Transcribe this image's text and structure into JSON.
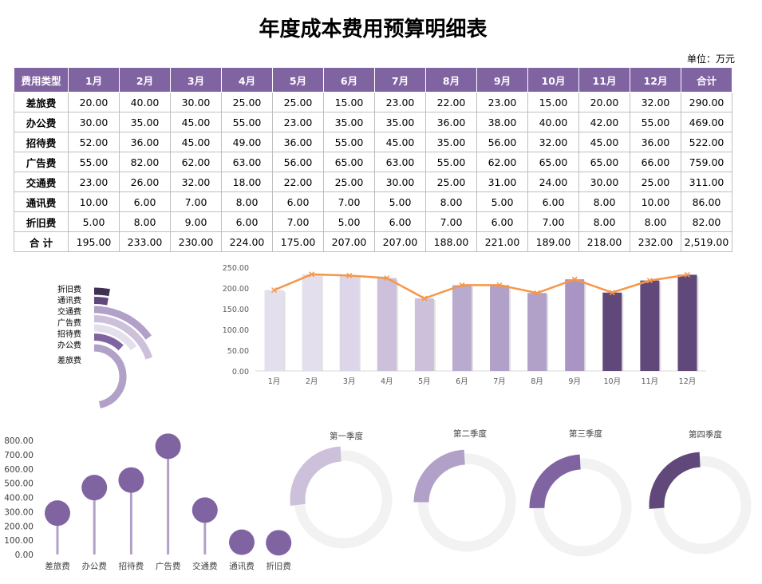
{
  "title": "年度成本费用预算明细表",
  "unit": "单位：万元",
  "table": {
    "headers": [
      "费用类型",
      "1月",
      "2月",
      "3月",
      "4月",
      "5月",
      "6月",
      "7月",
      "8月",
      "9月",
      "10月",
      "11月",
      "12月",
      "合计"
    ],
    "rows": [
      [
        "差旅费",
        "20.00",
        "40.00",
        "30.00",
        "25.00",
        "25.00",
        "15.00",
        "23.00",
        "22.00",
        "23.00",
        "15.00",
        "20.00",
        "32.00",
        "290.00"
      ],
      [
        "办公费",
        "30.00",
        "35.00",
        "45.00",
        "55.00",
        "23.00",
        "35.00",
        "35.00",
        "36.00",
        "38.00",
        "40.00",
        "42.00",
        "55.00",
        "469.00"
      ],
      [
        "招待费",
        "52.00",
        "36.00",
        "45.00",
        "49.00",
        "36.00",
        "55.00",
        "45.00",
        "35.00",
        "56.00",
        "32.00",
        "45.00",
        "36.00",
        "522.00"
      ],
      [
        "广告费",
        "55.00",
        "82.00",
        "62.00",
        "63.00",
        "56.00",
        "65.00",
        "63.00",
        "55.00",
        "62.00",
        "65.00",
        "65.00",
        "66.00",
        "759.00"
      ],
      [
        "交通费",
        "23.00",
        "26.00",
        "32.00",
        "18.00",
        "22.00",
        "25.00",
        "30.00",
        "25.00",
        "31.00",
        "24.00",
        "30.00",
        "25.00",
        "311.00"
      ],
      [
        "通讯费",
        "10.00",
        "6.00",
        "7.00",
        "8.00",
        "6.00",
        "7.00",
        "5.00",
        "8.00",
        "5.00",
        "6.00",
        "8.00",
        "10.00",
        "86.00"
      ],
      [
        "折旧费",
        "5.00",
        "8.00",
        "9.00",
        "6.00",
        "7.00",
        "5.00",
        "6.00",
        "7.00",
        "6.00",
        "7.00",
        "8.00",
        "8.00",
        "82.00"
      ],
      [
        "合 计",
        "195.00",
        "233.00",
        "230.00",
        "224.00",
        "175.00",
        "207.00",
        "207.00",
        "188.00",
        "221.00",
        "189.00",
        "218.00",
        "232.00",
        "2,519.00"
      ]
    ]
  },
  "chart_data": [
    {
      "type": "radial-bar",
      "categories": [
        "折旧费",
        "通讯费",
        "交通费",
        "广告费",
        "招待费",
        "办公费",
        "差旅费"
      ],
      "values": [
        82,
        86,
        311,
        759,
        522,
        469,
        290
      ],
      "colors": [
        "#403152",
        "#60497a",
        "#b1a0c7",
        "#ccc0da",
        "#e4dfec",
        "#8064a2",
        "#b1a0c7"
      ]
    },
    {
      "type": "bar+line",
      "categories": [
        "1月",
        "2月",
        "3月",
        "4月",
        "5月",
        "6月",
        "7月",
        "8月",
        "9月",
        "10月",
        "11月",
        "12月"
      ],
      "values": [
        195,
        233,
        230,
        224,
        175,
        207,
        207,
        188,
        221,
        189,
        218,
        232
      ],
      "yticks": [
        "0.00",
        "50.00",
        "100.00",
        "150.00",
        "200.00",
        "250.00"
      ],
      "ylim": [
        0,
        250
      ],
      "bar_colors": [
        "#e4dfec",
        "#e4dfec",
        "#ddd5e8",
        "#ccc0da",
        "#ccc0da",
        "#b9abd0",
        "#b1a0c7",
        "#b1a0c7",
        "#a895c4",
        "#60497a",
        "#60497a",
        "#60497a"
      ],
      "line_color": "#f79646"
    },
    {
      "type": "lollipop",
      "categories": [
        "差旅费",
        "办公费",
        "招待费",
        "广告费",
        "交通费",
        "通讯费",
        "折旧费"
      ],
      "values": [
        290,
        469,
        522,
        759,
        311,
        86,
        82
      ],
      "yticks": [
        "0.00",
        "100.00",
        "200.00",
        "300.00",
        "400.00",
        "500.00",
        "600.00",
        "700.00",
        "800.00"
      ],
      "ylim": [
        0,
        800
      ],
      "color": "#8064a2",
      "stem_color": "#b1a0c7"
    },
    {
      "type": "doughnut",
      "titles": [
        "第一季度",
        "第二季度",
        "第三季度",
        "第四季度"
      ],
      "values": [
        658,
        606,
        616,
        639
      ],
      "total": 2519,
      "colors": [
        "#ccc0da",
        "#b1a0c7",
        "#8064a2",
        "#60497a"
      ],
      "rest_color": "#f2f2f2"
    }
  ]
}
